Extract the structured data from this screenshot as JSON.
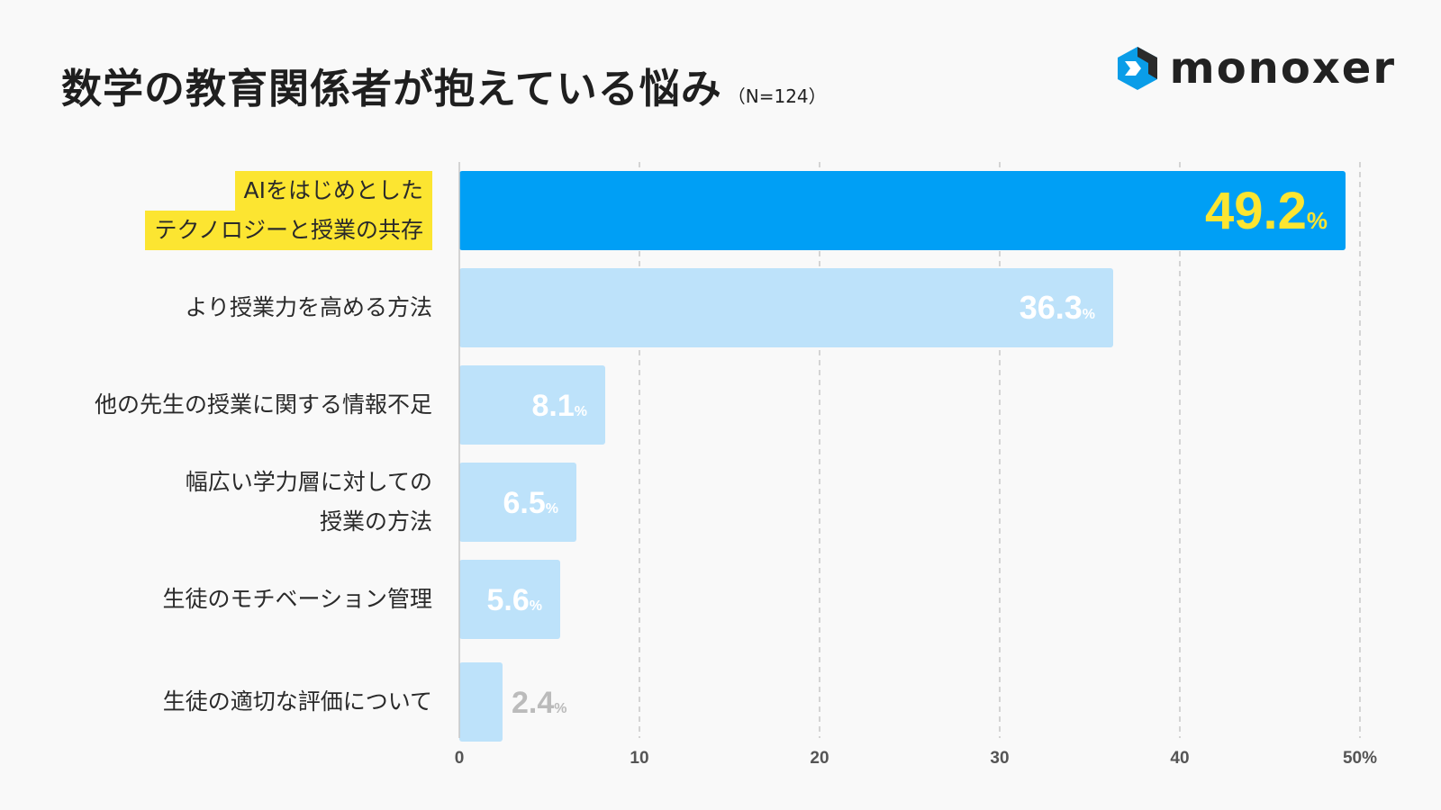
{
  "header": {
    "title": "数学の教育関係者が抱えている悩み",
    "note": "（N=124）",
    "brand": "monoxer"
  },
  "chart_data": {
    "type": "bar",
    "orientation": "horizontal",
    "title": "数学の教育関係者が抱えている悩み",
    "categories": [
      [
        "AIをはじめとした",
        "テクノロジーと授業の共存"
      ],
      [
        "より授業力を高める方法"
      ],
      [
        "他の先生の授業に関する情報不足"
      ],
      [
        "幅広い学力層に対しての",
        "授業の方法"
      ],
      [
        "生徒のモチベーション管理"
      ],
      [
        "生徒の適切な評価について"
      ]
    ],
    "values": [
      49.2,
      36.3,
      8.1,
      6.5,
      5.6,
      2.4
    ],
    "value_labels": [
      "49.2",
      "36.3",
      "8.1",
      "6.5",
      "5.6",
      "2.4"
    ],
    "value_suffix": "%",
    "xlim": [
      0,
      50
    ],
    "xticks": [
      "0",
      "10",
      "20",
      "30",
      "40",
      "50%"
    ],
    "grid": true,
    "colors": {
      "highlight": "#009ff5",
      "bar": "#bde2fa",
      "highlight_text": "#fce531",
      "text": "#ffffff",
      "outside_text": "#bbbbbb",
      "label_highlight": "#fce531"
    }
  }
}
